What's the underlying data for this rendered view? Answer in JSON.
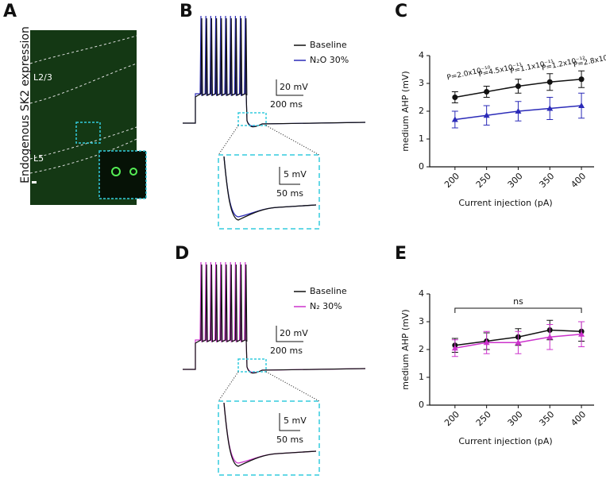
{
  "panel_labels": [
    "A",
    "B",
    "C",
    "D",
    "E"
  ],
  "panel_a": {
    "ylabel": "Endogenous SK2 expression",
    "layers": [
      "L2/3",
      "L5"
    ]
  },
  "panel_b": {
    "legend": [
      "Baseline",
      "N₂O 30%"
    ],
    "scalebars": [
      "20 mV",
      "200 ms",
      "5 mV",
      "50 ms"
    ]
  },
  "panel_d": {
    "legend": [
      "Baseline",
      "N₂ 30%"
    ],
    "scalebars": [
      "20 mV",
      "200 ms",
      "5 mV",
      "50 ms"
    ]
  },
  "chart_data": [
    {
      "type": "line",
      "xlabel": "Current injection (pA)",
      "ylabel": "medium AHP (mV)",
      "x": [
        200,
        250,
        300,
        350,
        400
      ],
      "xlim": [
        160,
        420
      ],
      "xticks": [
        200,
        250,
        300,
        350,
        400
      ],
      "ylim": [
        0,
        4
      ],
      "yticks": [
        0,
        1,
        2,
        3,
        4
      ],
      "series": [
        {
          "color": "#111111",
          "marker": "circle",
          "values": [
            2.5,
            2.7,
            2.9,
            3.05,
            3.15
          ],
          "errors": [
            0.2,
            0.2,
            0.25,
            0.3,
            0.3
          ]
        },
        {
          "color": "#2b2bb8",
          "marker": "triangle",
          "values": [
            1.7,
            1.85,
            2.0,
            2.1,
            2.2
          ],
          "errors": [
            0.3,
            0.35,
            0.35,
            0.4,
            0.45
          ]
        }
      ],
      "annotations": [
        "P=2.0x10⁻¹⁰",
        "P=4.5x10⁻¹¹",
        "P=1.1x10⁻¹¹",
        "P=1.2x10⁻¹²",
        "P=2.8x10⁻¹²"
      ]
    },
    {
      "type": "line",
      "xlabel": "Current injection (pA)",
      "ylabel": "medium AHP (mV)",
      "x": [
        200,
        250,
        300,
        350,
        400
      ],
      "xlim": [
        160,
        420
      ],
      "xticks": [
        200,
        250,
        300,
        350,
        400
      ],
      "ylim": [
        0,
        4
      ],
      "yticks": [
        0,
        1,
        2,
        3,
        4
      ],
      "series": [
        {
          "color": "#111111",
          "marker": "circle",
          "values": [
            2.15,
            2.3,
            2.45,
            2.7,
            2.65
          ],
          "errors": [
            0.25,
            0.3,
            0.3,
            0.35,
            0.35
          ]
        },
        {
          "color": "#cc33cc",
          "marker": "triangle",
          "values": [
            2.05,
            2.25,
            2.25,
            2.45,
            2.55
          ],
          "errors": [
            0.3,
            0.4,
            0.4,
            0.45,
            0.45
          ]
        }
      ],
      "annotations": [
        "ns"
      ]
    }
  ]
}
